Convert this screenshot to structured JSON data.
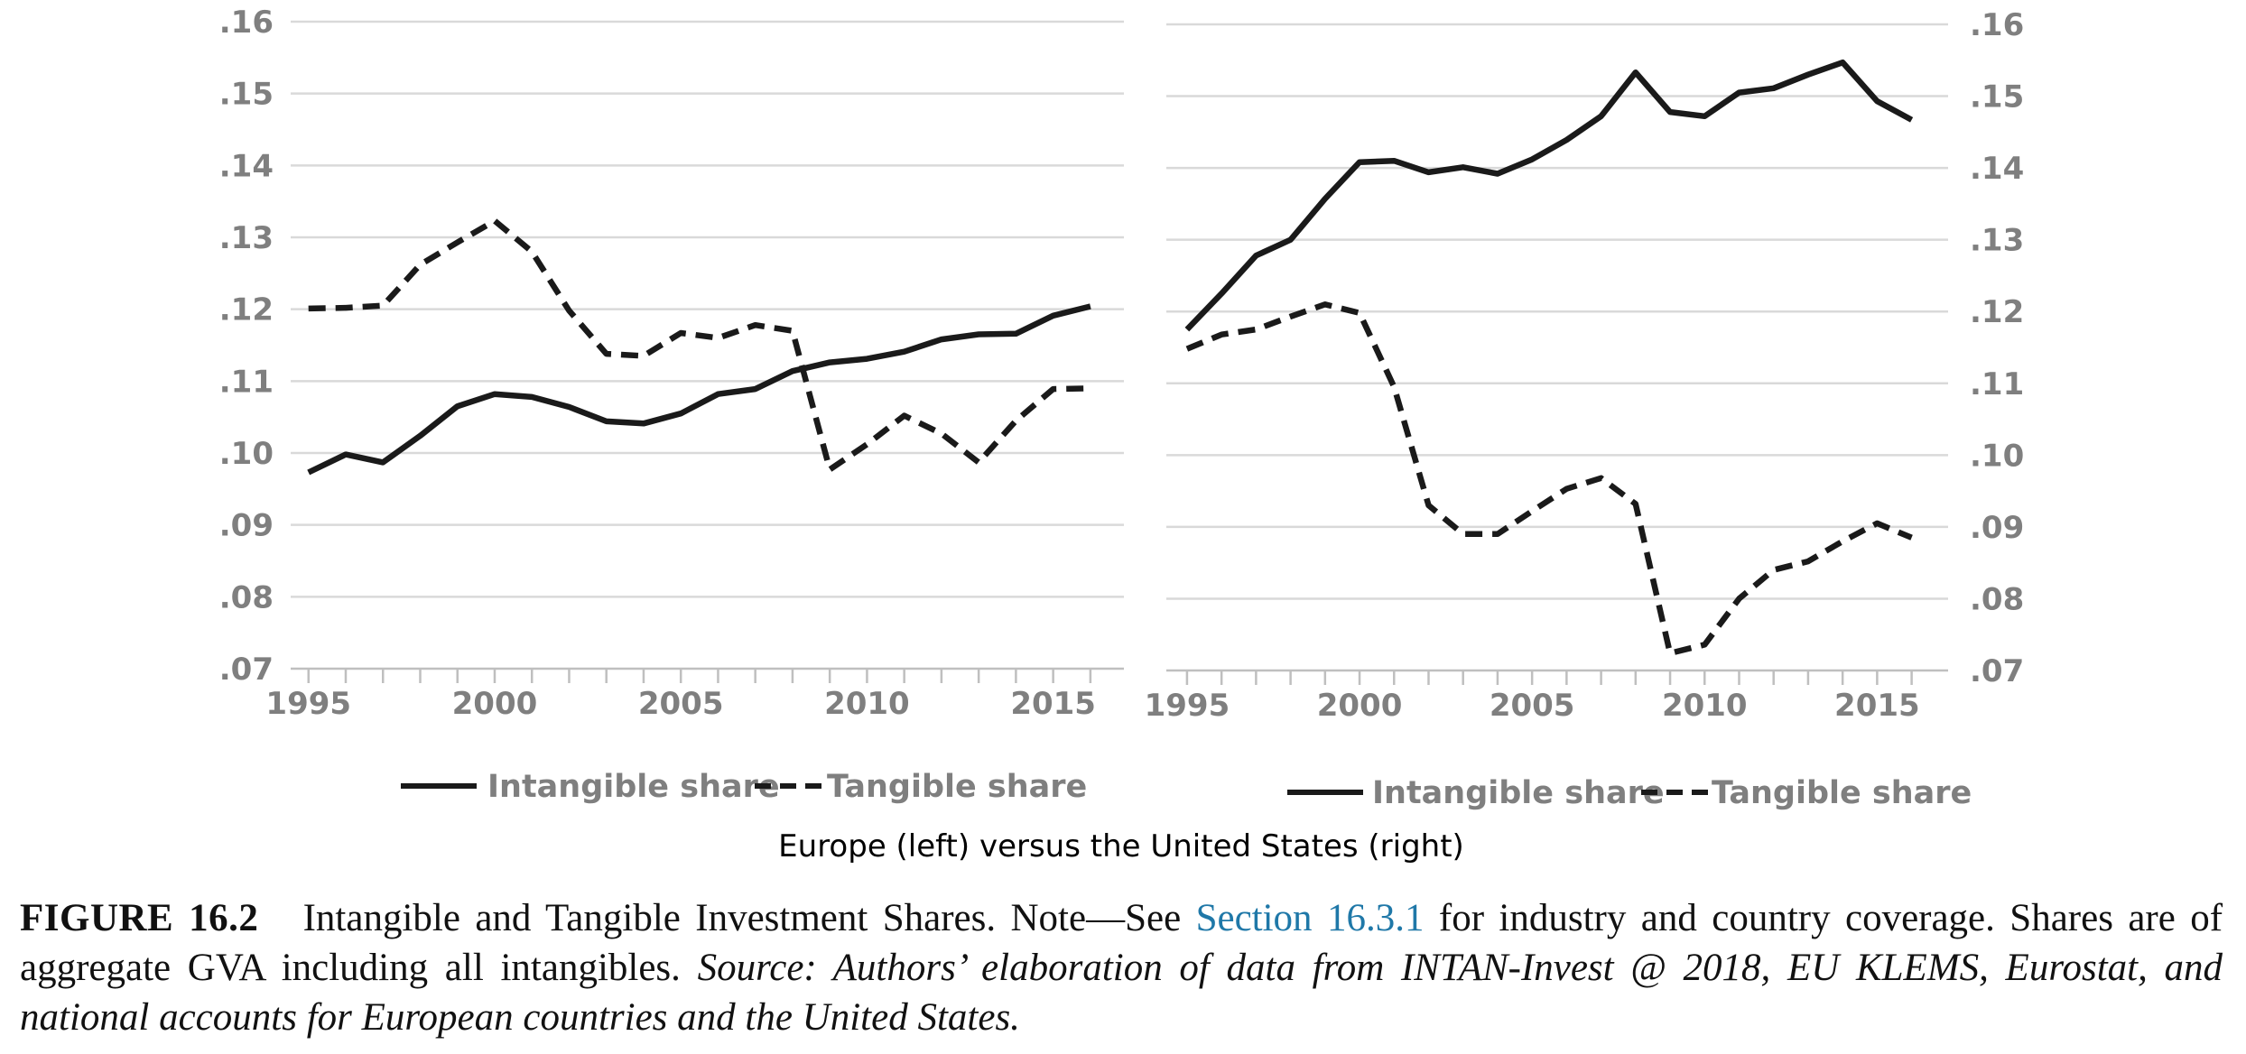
{
  "chart_data": [
    {
      "type": "line",
      "panel": "left",
      "y_axis_side": "left",
      "ylim": [
        0.07,
        0.16
      ],
      "yticks": [
        ".16",
        ".15",
        ".14",
        ".13",
        ".12",
        ".11",
        ".10",
        ".09",
        ".08",
        ".07"
      ],
      "xlim": [
        1994.4,
        2016.9
      ],
      "xticks": [
        "1995",
        "2000",
        "2005",
        "2010",
        "2015"
      ],
      "grid": "horizontal",
      "legend_position": "bottom",
      "x": [
        1995,
        1996,
        1997,
        1998,
        1999,
        2000,
        2001,
        2002,
        2003,
        2004,
        2005,
        2006,
        2007,
        2008,
        2009,
        2010,
        2011,
        2012,
        2013,
        2014,
        2015,
        2016
      ],
      "series": [
        {
          "name": "Intangible share",
          "line_style": "solid",
          "values": [
            0.0973,
            0.0998,
            0.0987,
            0.1024,
            0.1065,
            0.1082,
            0.1078,
            0.1064,
            0.1044,
            0.1041,
            0.1055,
            0.1082,
            0.1089,
            0.1114,
            0.1126,
            0.1131,
            0.1141,
            0.1158,
            0.1165,
            0.1166,
            0.1191,
            0.1204
          ]
        },
        {
          "name": "Tangible share",
          "line_style": "dashed",
          "values": [
            0.1201,
            0.1202,
            0.1205,
            0.1262,
            0.1293,
            0.1323,
            0.128,
            0.1198,
            0.1138,
            0.1135,
            0.1167,
            0.116,
            0.1178,
            0.117,
            0.0977,
            0.1012,
            0.1052,
            0.1027,
            0.0987,
            0.1045,
            0.1089,
            0.109
          ]
        }
      ]
    },
    {
      "type": "line",
      "panel": "right",
      "y_axis_side": "right",
      "ylim": [
        0.07,
        0.16
      ],
      "yticks": [
        ".16",
        ".15",
        ".14",
        ".13",
        ".12",
        ".11",
        ".10",
        ".09",
        ".08",
        ".07"
      ],
      "xlim": [
        1994.4,
        2016.9
      ],
      "xticks": [
        "1995",
        "2000",
        "2005",
        "2010",
        "2015"
      ],
      "grid": "horizontal",
      "legend_position": "bottom",
      "x": [
        1995,
        1996,
        1997,
        1998,
        1999,
        2000,
        2001,
        2002,
        2003,
        2004,
        2005,
        2006,
        2007,
        2008,
        2009,
        2010,
        2011,
        2012,
        2013,
        2014,
        2015,
        2016
      ],
      "series": [
        {
          "name": "Intangible share",
          "line_style": "solid",
          "values": [
            0.1175,
            0.1225,
            0.1278,
            0.13,
            0.1357,
            0.1408,
            0.141,
            0.1394,
            0.1401,
            0.1392,
            0.1412,
            0.1439,
            0.1472,
            0.1533,
            0.1478,
            0.1472,
            0.1505,
            0.1511,
            0.153,
            0.1547,
            0.1493,
            0.1467
          ]
        },
        {
          "name": "Tangible share",
          "line_style": "dashed",
          "values": [
            0.1148,
            0.1168,
            0.1175,
            0.1193,
            0.121,
            0.1198,
            0.1095,
            0.093,
            0.089,
            0.089,
            0.0922,
            0.0953,
            0.0968,
            0.0932,
            0.0724,
            0.0736,
            0.08,
            0.084,
            0.0852,
            0.088,
            0.0905,
            0.0885
          ]
        }
      ]
    }
  ],
  "legend": {
    "intangible_label": "Intangible share",
    "tangible_label": "Tangible share"
  },
  "subtitle": "Europe (left) versus  the United States (right)",
  "caption": {
    "label": "FIGURE 16.2",
    "text_before_link": "Intangible and Tangible Investment Shares. Note—See",
    "link_text": "Section 16.3.1",
    "text_after_link": "for industry and country coverage. Shares are of aggregate GVA including all intangibles.",
    "source_text": "Source: Authors’ elaboration of data from INTAN-Invest @ 2018, EU KLEMS, Eurostat, and national accounts for European countries and the United States."
  },
  "colors": {
    "series_line": "#1a1a1a",
    "gridline": "#d9d9d9",
    "axis": "#bfbfbf",
    "tick_text": "#7f7f7f",
    "link": "#1f78a8"
  }
}
